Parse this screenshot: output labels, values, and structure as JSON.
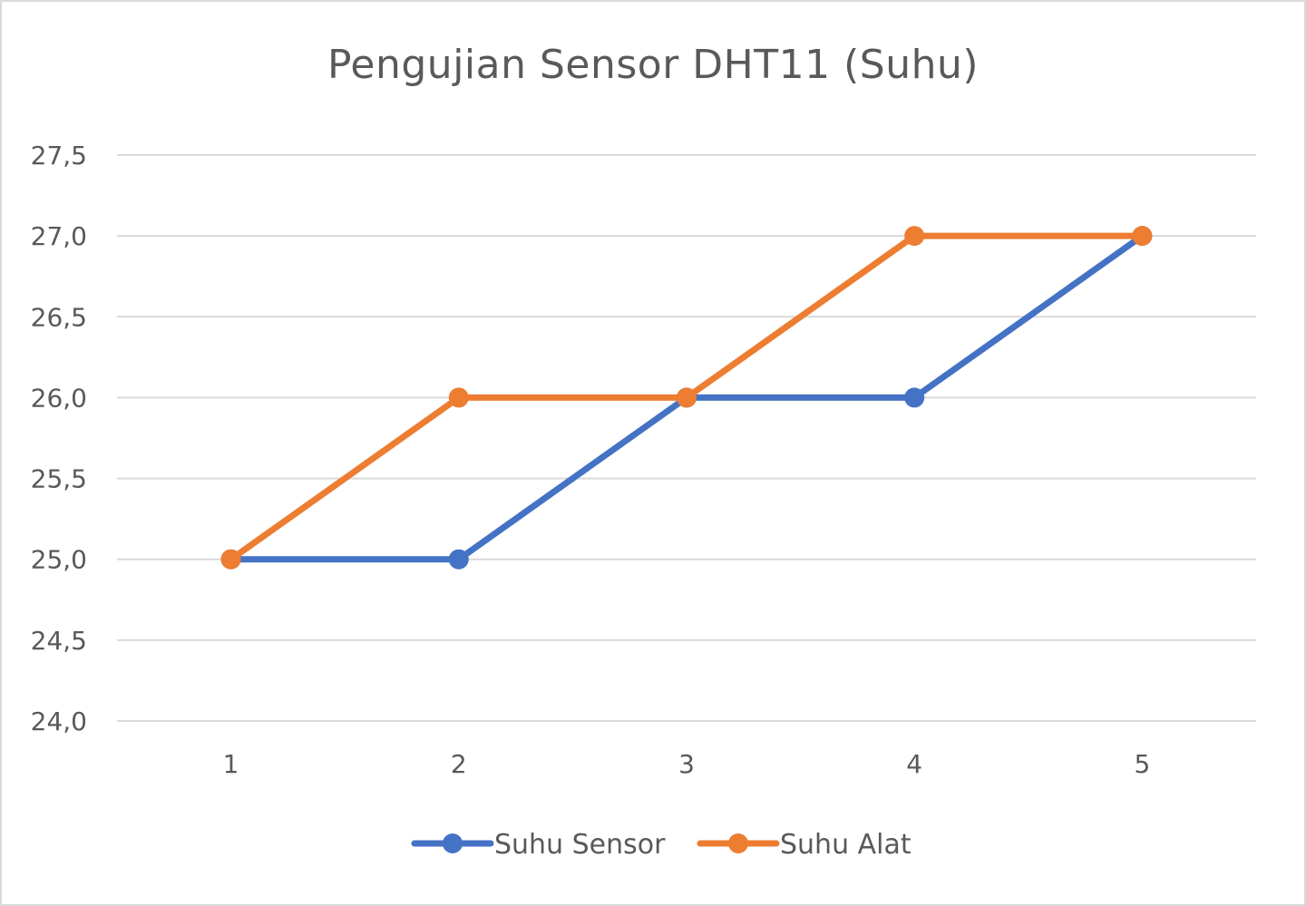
{
  "chart_data": {
    "type": "line",
    "title": "Pengujian Sensor DHT11 (Suhu)",
    "xlabel": "",
    "ylabel": "",
    "categories": [
      "1",
      "2",
      "3",
      "4",
      "5"
    ],
    "ylim": [
      24.0,
      27.5
    ],
    "yticks": [
      "24,0",
      "24,5",
      "25,0",
      "25,5",
      "26,0",
      "26,5",
      "27,0",
      "27,5"
    ],
    "grid": true,
    "legend_position": "bottom",
    "series": [
      {
        "name": "Suhu Sensor",
        "color": "#4472C4",
        "values": [
          25.0,
          25.0,
          26.0,
          26.0,
          27.0
        ]
      },
      {
        "name": "Suhu Alat",
        "color": "#ED7D31",
        "values": [
          25.0,
          26.0,
          26.0,
          27.0,
          27.0
        ]
      }
    ]
  }
}
